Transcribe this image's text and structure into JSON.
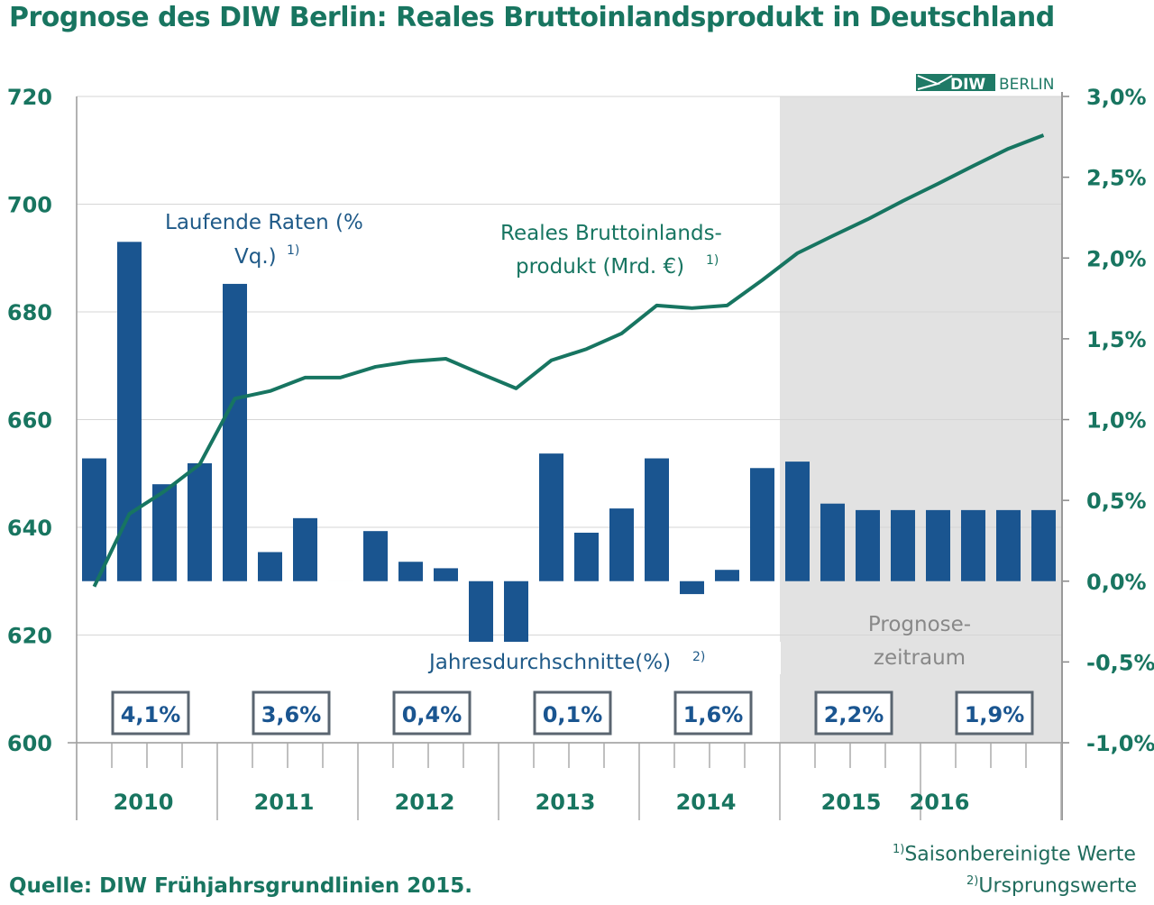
{
  "title": "Prognose des DIW Berlin: Reales Bruttoinlandsprodukt in Deutschland",
  "logo": {
    "text_left": "DIW",
    "text_right": "BERLIN"
  },
  "colors": {
    "bar": "#1a5590",
    "line": "#177561",
    "axis_text_green": "#187560",
    "forecast_bg": "#e2e2e2",
    "box_border": "#5a6570"
  },
  "chart_data": {
    "type": "bar+line",
    "title": "Prognose des DIW Berlin: Reales Bruttoinlandsprodukt in Deutschland",
    "quarters_per_year": 4,
    "years": [
      "2010",
      "2011",
      "2012",
      "2013",
      "2014",
      "2015",
      "2016"
    ],
    "left_axis": {
      "ylim": [
        600,
        720
      ],
      "ticks": [
        "600",
        "620",
        "640",
        "660",
        "680",
        "700",
        "720"
      ],
      "tick_values": [
        600,
        620,
        640,
        660,
        680,
        700,
        720
      ]
    },
    "right_axis": {
      "ylim": [
        -1.0,
        3.0
      ],
      "ticks": [
        "-1,0%",
        "-0,5%",
        "0,0%",
        "0,5%",
        "1,0%",
        "1,5%",
        "2,0%",
        "2,5%",
        "3,0%"
      ],
      "tick_values": [
        -1.0,
        -0.5,
        0,
        0.5,
        1.0,
        1.5,
        2.0,
        2.5,
        3.0
      ]
    },
    "series": [
      {
        "name": "Laufende Raten (% Vq.)",
        "type": "bar",
        "axis": "right",
        "values": [
          0.76,
          2.1,
          0.6,
          0.73,
          1.84,
          0.18,
          0.39,
          0.0,
          0.31,
          0.12,
          0.08,
          -0.39,
          -0.39,
          0.79,
          0.3,
          0.45,
          0.76,
          -0.08,
          0.07,
          0.7,
          0.74,
          0.48,
          0.44,
          0.44,
          0.44,
          0.44,
          0.44,
          0.44
        ]
      },
      {
        "name": "Reales Bruttoinlandsprodukt (Mrd. €)",
        "type": "line",
        "axis": "left",
        "values": [
          629.0,
          642.5,
          646.7,
          651.7,
          663.9,
          665.3,
          667.8,
          667.8,
          669.8,
          670.8,
          671.3,
          668.5,
          665.8,
          671.0,
          673.1,
          676.0,
          681.2,
          680.7,
          681.2,
          685.9,
          690.9,
          694.1,
          697.2,
          700.6,
          703.8,
          707.1,
          710.3,
          712.8
        ]
      }
    ],
    "annual_averages": [
      "4,1%",
      "3,6%",
      "0,4%",
      "0,1%",
      "1,6%",
      "2,2%",
      "1,9%"
    ],
    "forecast_start_quarter_index": 20,
    "annotations": {
      "bars_label_1": "Laufende Raten (%",
      "bars_label_2": "Vq.)",
      "line_label_1": "Reales Bruttoinlands-",
      "line_label_2": "produkt (Mrd. €)",
      "annual_label": "Jahresdurchschnitte(%)",
      "forecast_label_1": "Prognose-",
      "forecast_label_2": "zeitraum",
      "sup1": "1)",
      "sup2": "2)"
    }
  },
  "footnotes": {
    "n1_mark": "1)",
    "n1": "Saisonbereinigte Werte",
    "n2_mark": "2)",
    "n2": "Ursprungswerte"
  },
  "source": "Quelle: DIW Frühjahrsgrundlinien 2015."
}
